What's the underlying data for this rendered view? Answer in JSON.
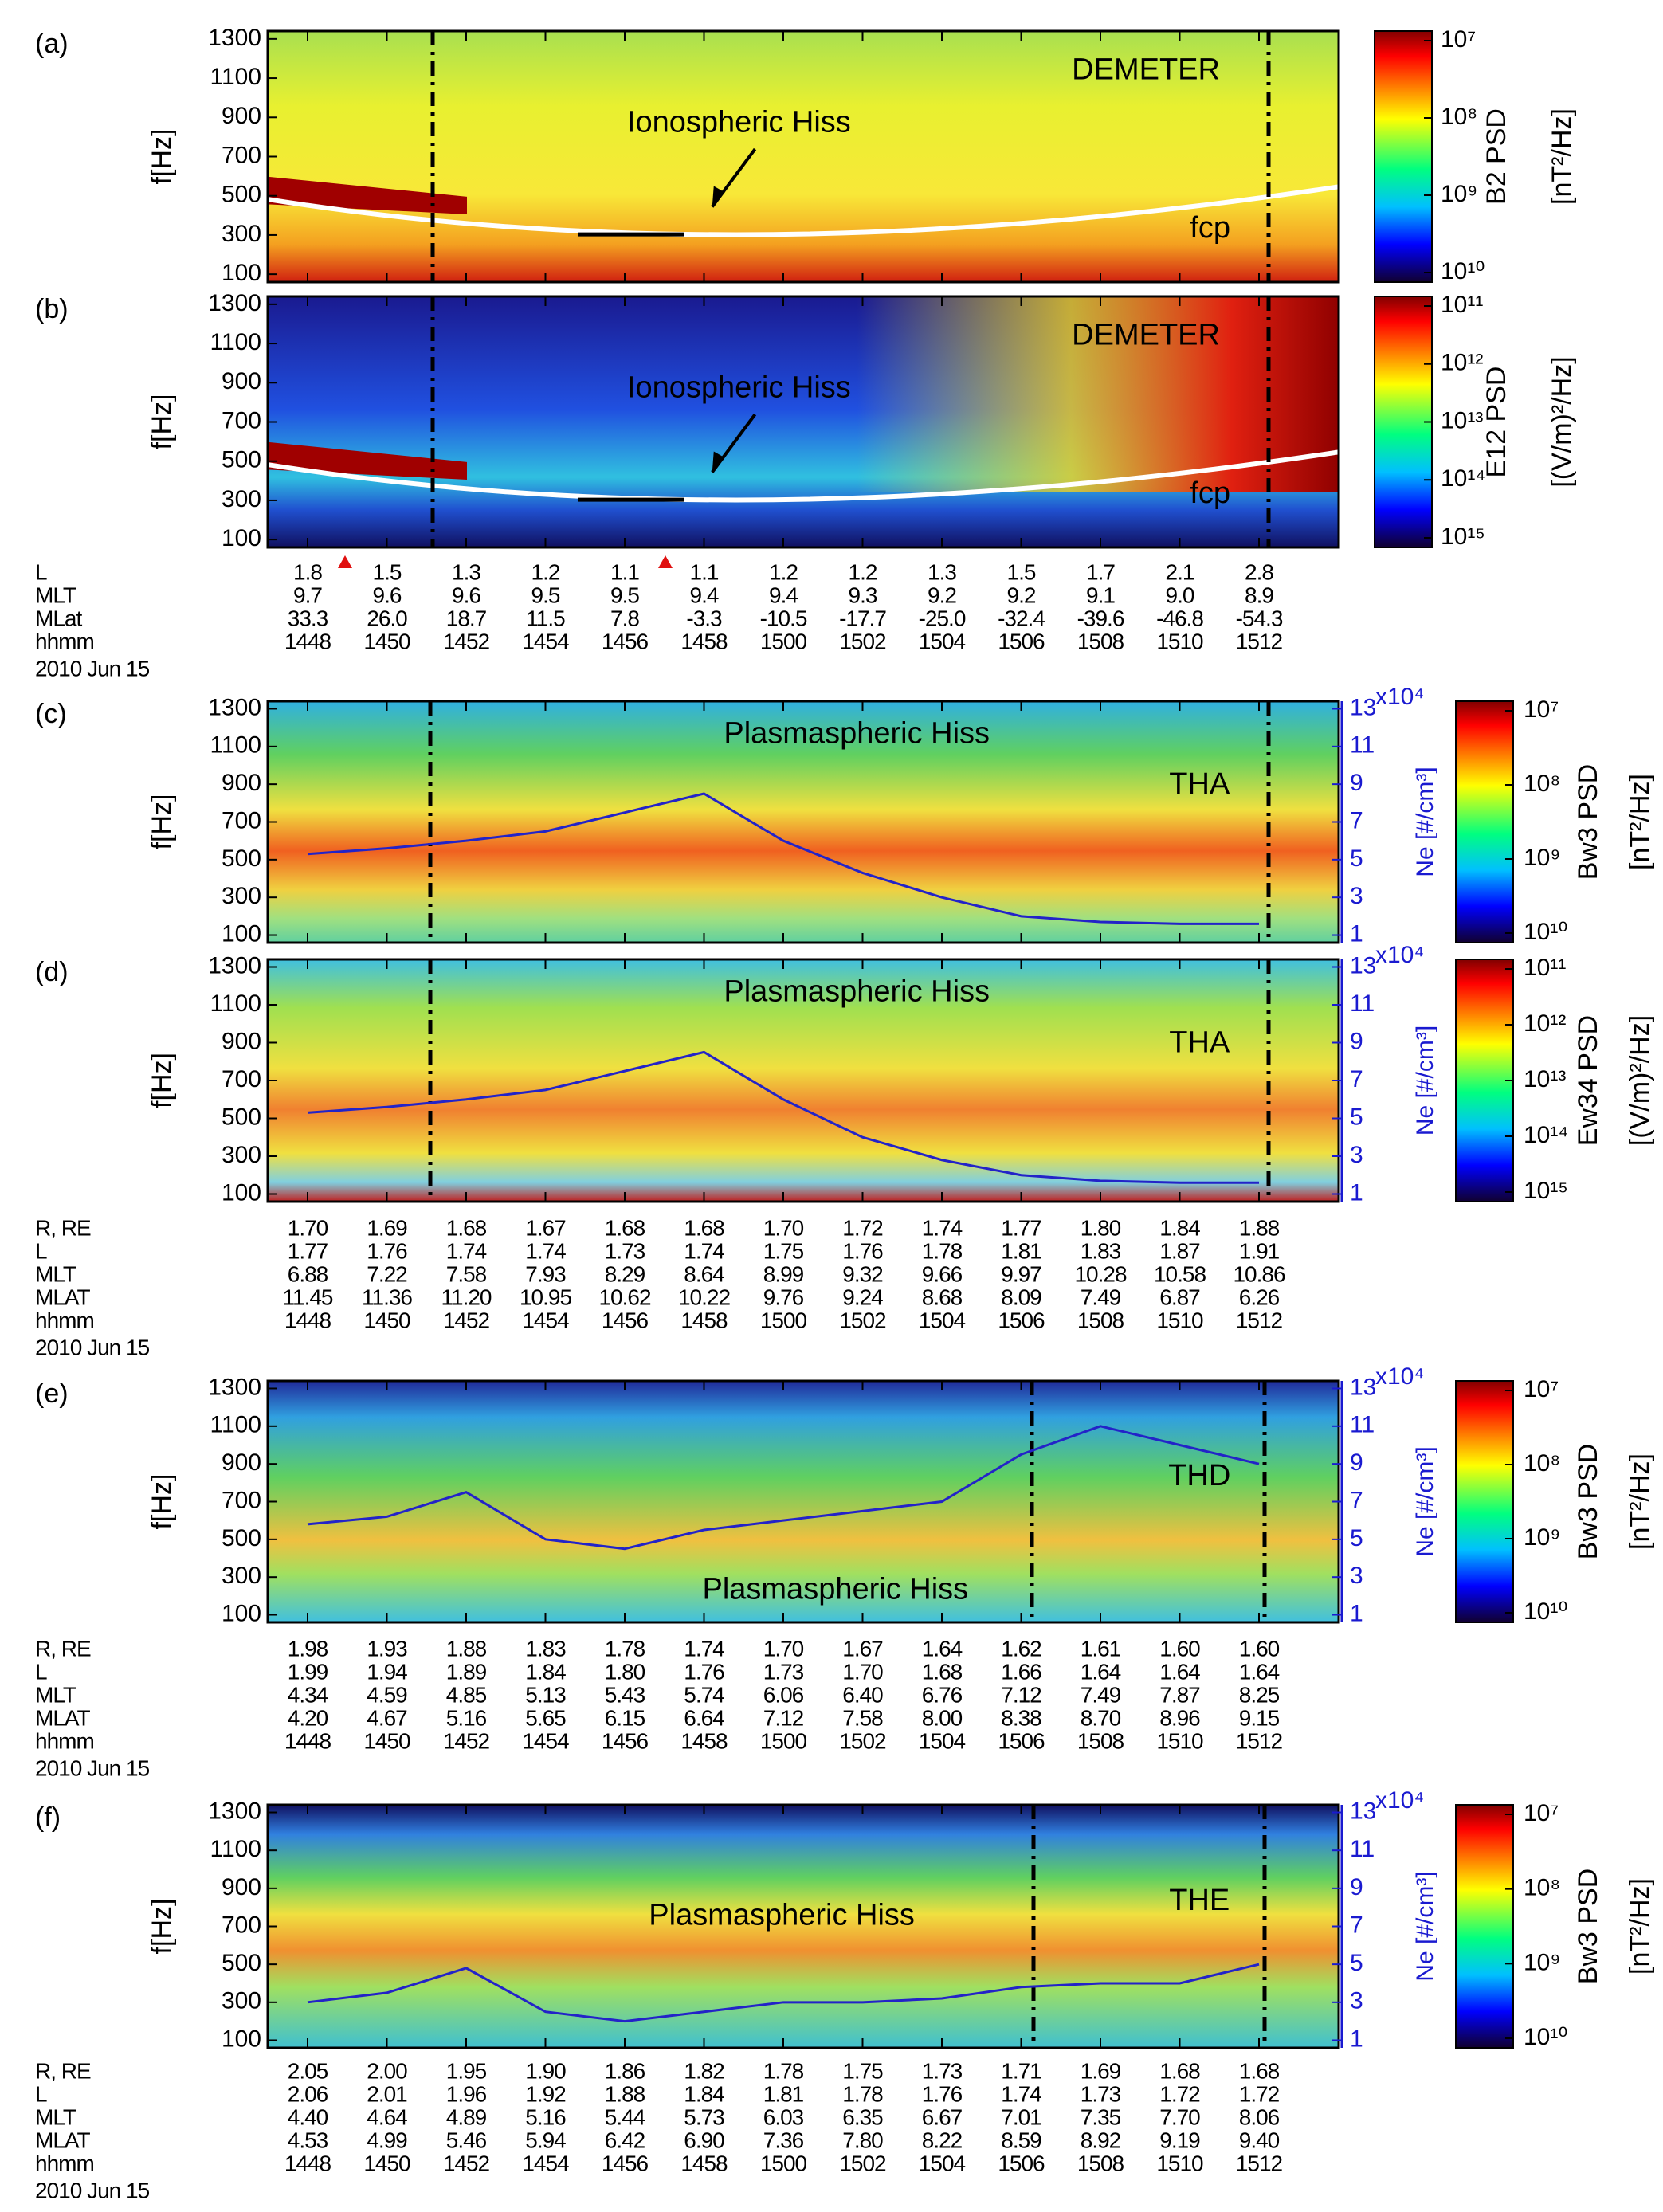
{
  "chart_data": [
    {
      "type": "spectrogram",
      "label": "(a)",
      "ylabel": "f[Hz]",
      "ylim": [
        60,
        1340
      ],
      "yticks": [
        100,
        300,
        500,
        700,
        900,
        1100,
        1300
      ],
      "annotations": [
        "DEMETER",
        "Ionospheric Hiss",
        "fcp"
      ],
      "colorbar": {
        "ticks": [
          "10⁷",
          "10⁸",
          "10⁹",
          "10¹⁰"
        ],
        "label": "B2 PSD",
        "unit": "[nT²/Hz]"
      }
    },
    {
      "type": "spectrogram",
      "label": "(b)",
      "ylabel": "f[Hz]",
      "ylim": [
        60,
        1340
      ],
      "yticks": [
        100,
        300,
        500,
        700,
        900,
        1100,
        1300
      ],
      "annotations": [
        "DEMETER",
        "Ionospheric Hiss",
        "fcp"
      ],
      "colorbar": {
        "ticks": [
          "10¹¹",
          "10¹²",
          "10¹³",
          "10¹⁴",
          "10¹⁵"
        ],
        "label": "E12 PSD",
        "unit": "[(V/m)²/Hz]"
      },
      "orbit": {
        "rows": [
          {
            "label": "L",
            "values": [
              "1.8",
              "1.5",
              "1.3",
              "1.2",
              "1.1",
              "1.1",
              "1.2",
              "1.2",
              "1.3",
              "1.5",
              "1.7",
              "2.1",
              "2.8"
            ]
          },
          {
            "label": "MLT",
            "values": [
              "9.7",
              "9.6",
              "9.6",
              "9.5",
              "9.5",
              "9.4",
              "9.4",
              "9.3",
              "9.2",
              "9.2",
              "9.1",
              "9.0",
              "8.9"
            ]
          },
          {
            "label": "MLat",
            "values": [
              "33.3",
              "26.0",
              "18.7",
              "11.5",
              "7.8",
              "-3.3",
              "-10.5",
              "-17.7",
              "-25.0",
              "-32.4",
              "-39.6",
              "-46.8",
              "-54.3"
            ]
          },
          {
            "label": "hhmm",
            "values": [
              "1448",
              "1450",
              "1452",
              "1454",
              "1456",
              "1458",
              "1500",
              "1502",
              "1504",
              "1506",
              "1508",
              "1510",
              "1512"
            ]
          }
        ],
        "date": "2010 Jun 15"
      }
    },
    {
      "type": "spectrogram",
      "label": "(c)",
      "ylabel": "f[Hz]",
      "ylim": [
        60,
        1340
      ],
      "yticks": [
        100,
        300,
        500,
        700,
        900,
        1100,
        1300
      ],
      "y2lim": [
        0.6,
        13.4
      ],
      "y2ticks": [
        1,
        3,
        5,
        7,
        9,
        11,
        13
      ],
      "y2_multiplier": "x10⁴",
      "y2label": "Ne [#/cm³]",
      "series": [
        {
          "color": "#2323c8",
          "axis": "y2",
          "values": [
            5.3,
            5.6,
            6.0,
            6.5,
            7.5,
            8.5,
            6.0,
            4.3,
            3.0,
            2.0,
            1.7,
            1.6,
            1.6
          ]
        }
      ],
      "annotations": [
        "Plasmaspheric Hiss",
        "THA"
      ],
      "colorbar": {
        "ticks": [
          "10⁷",
          "10⁸",
          "10⁹",
          "10¹⁰"
        ],
        "label": "Bw3 PSD",
        "unit": "[nT²/Hz]"
      }
    },
    {
      "type": "spectrogram",
      "label": "(d)",
      "ylabel": "f[Hz]",
      "ylim": [
        60,
        1340
      ],
      "yticks": [
        100,
        300,
        500,
        700,
        900,
        1100,
        1300
      ],
      "y2lim": [
        0.6,
        13.4
      ],
      "y2ticks": [
        1,
        3,
        5,
        7,
        9,
        11,
        13
      ],
      "y2_multiplier": "x10⁴",
      "y2label": "Ne [#/cm³]",
      "series": [
        {
          "color": "#2323c8",
          "axis": "y2",
          "values": [
            5.3,
            5.6,
            6.0,
            6.5,
            7.5,
            8.5,
            6.0,
            4.0,
            2.8,
            2.0,
            1.7,
            1.6,
            1.6
          ]
        }
      ],
      "annotations": [
        "Plasmaspheric Hiss",
        "THA"
      ],
      "colorbar": {
        "ticks": [
          "10¹¹",
          "10¹²",
          "10¹³",
          "10¹⁴",
          "10¹⁵"
        ],
        "label": "Ew34 PSD",
        "unit": "[(V/m)²/Hz]"
      },
      "orbit": {
        "rows": [
          {
            "label": "R, RE",
            "values": [
              "1.70",
              "1.69",
              "1.68",
              "1.67",
              "1.68",
              "1.68",
              "1.70",
              "1.72",
              "1.74",
              "1.77",
              "1.80",
              "1.84",
              "1.88"
            ]
          },
          {
            "label": "L",
            "values": [
              "1.77",
              "1.76",
              "1.74",
              "1.74",
              "1.73",
              "1.74",
              "1.75",
              "1.76",
              "1.78",
              "1.81",
              "1.83",
              "1.87",
              "1.91"
            ]
          },
          {
            "label": "MLT",
            "values": [
              "6.88",
              "7.22",
              "7.58",
              "7.93",
              "8.29",
              "8.64",
              "8.99",
              "9.32",
              "9.66",
              "9.97",
              "10.28",
              "10.58",
              "10.86"
            ]
          },
          {
            "label": "MLAT",
            "values": [
              "11.45",
              "11.36",
              "11.20",
              "10.95",
              "10.62",
              "10.22",
              "9.76",
              "9.24",
              "8.68",
              "8.09",
              "7.49",
              "6.87",
              "6.26"
            ]
          },
          {
            "label": "hhmm",
            "values": [
              "1448",
              "1450",
              "1452",
              "1454",
              "1456",
              "1458",
              "1500",
              "1502",
              "1504",
              "1506",
              "1508",
              "1510",
              "1512"
            ]
          }
        ],
        "date": "2010 Jun 15"
      }
    },
    {
      "type": "spectrogram",
      "label": "(e)",
      "ylabel": "f[Hz]",
      "ylim": [
        60,
        1340
      ],
      "yticks": [
        100,
        300,
        500,
        700,
        900,
        1100,
        1300
      ],
      "y2lim": [
        0.6,
        13.4
      ],
      "y2ticks": [
        1,
        3,
        5,
        7,
        9,
        11,
        13
      ],
      "y2_multiplier": "x10⁴",
      "y2label": "Ne [#/cm³]",
      "series": [
        {
          "color": "#2323c8",
          "axis": "y2",
          "values": [
            5.8,
            6.2,
            7.5,
            5.0,
            4.5,
            5.5,
            6.0,
            6.5,
            7.0,
            9.5,
            11.0,
            10.0,
            9.0
          ]
        }
      ],
      "annotations": [
        "THD",
        "Plasmaspheric Hiss"
      ],
      "colorbar": {
        "ticks": [
          "10⁷",
          "10⁸",
          "10⁹",
          "10¹⁰"
        ],
        "label": "Bw3 PSD",
        "unit": "[nT²/Hz]"
      },
      "orbit": {
        "rows": [
          {
            "label": "R, RE",
            "values": [
              "1.98",
              "1.93",
              "1.88",
              "1.83",
              "1.78",
              "1.74",
              "1.70",
              "1.67",
              "1.64",
              "1.62",
              "1.61",
              "1.60",
              "1.60"
            ]
          },
          {
            "label": "L",
            "values": [
              "1.99",
              "1.94",
              "1.89",
              "1.84",
              "1.80",
              "1.76",
              "1.73",
              "1.70",
              "1.68",
              "1.66",
              "1.64",
              "1.64",
              "1.64"
            ]
          },
          {
            "label": "MLT",
            "values": [
              "4.34",
              "4.59",
              "4.85",
              "5.13",
              "5.43",
              "5.74",
              "6.06",
              "6.40",
              "6.76",
              "7.12",
              "7.49",
              "7.87",
              "8.25"
            ]
          },
          {
            "label": "MLAT",
            "values": [
              "4.20",
              "4.67",
              "5.16",
              "5.65",
              "6.15",
              "6.64",
              "7.12",
              "7.58",
              "8.00",
              "8.38",
              "8.70",
              "8.96",
              "9.15"
            ]
          },
          {
            "label": "hhmm",
            "values": [
              "1448",
              "1450",
              "1452",
              "1454",
              "1456",
              "1458",
              "1500",
              "1502",
              "1504",
              "1506",
              "1508",
              "1510",
              "1512"
            ]
          }
        ],
        "date": "2010 Jun 15"
      }
    },
    {
      "type": "spectrogram",
      "label": "(f)",
      "ylabel": "f[Hz]",
      "ylim": [
        60,
        1340
      ],
      "yticks": [
        100,
        300,
        500,
        700,
        900,
        1100,
        1300
      ],
      "y2lim": [
        0.6,
        13.4
      ],
      "y2ticks": [
        1,
        3,
        5,
        7,
        9,
        11,
        13
      ],
      "y2_multiplier": "x10⁴",
      "y2label": "Ne [#/cm³]",
      "series": [
        {
          "color": "#2323c8",
          "axis": "y2",
          "values": [
            3.0,
            3.5,
            4.8,
            2.5,
            2.0,
            2.5,
            3.0,
            3.0,
            3.2,
            3.8,
            4.0,
            4.0,
            5.0
          ]
        }
      ],
      "annotations": [
        "Plasmaspheric Hiss",
        "THE"
      ],
      "colorbar": {
        "ticks": [
          "10⁷",
          "10⁸",
          "10⁹",
          "10¹⁰"
        ],
        "label": "Bw3 PSD",
        "unit": "[nT²/Hz]"
      },
      "orbit": {
        "rows": [
          {
            "label": "R, RE",
            "values": [
              "2.05",
              "2.00",
              "1.95",
              "1.90",
              "1.86",
              "1.82",
              "1.78",
              "1.75",
              "1.73",
              "1.71",
              "1.69",
              "1.68",
              "1.68"
            ]
          },
          {
            "label": "L",
            "values": [
              "2.06",
              "2.01",
              "1.96",
              "1.92",
              "1.88",
              "1.84",
              "1.81",
              "1.78",
              "1.76",
              "1.74",
              "1.73",
              "1.72",
              "1.72"
            ]
          },
          {
            "label": "MLT",
            "values": [
              "4.40",
              "4.64",
              "4.89",
              "5.16",
              "5.44",
              "5.73",
              "6.03",
              "6.35",
              "6.67",
              "7.01",
              "7.35",
              "7.70",
              "8.06"
            ]
          },
          {
            "label": "MLAT",
            "values": [
              "4.53",
              "4.99",
              "5.46",
              "5.94",
              "6.42",
              "6.90",
              "7.36",
              "7.80",
              "8.22",
              "8.59",
              "8.92",
              "9.19",
              "9.40"
            ]
          },
          {
            "label": "hhmm",
            "values": [
              "1448",
              "1450",
              "1452",
              "1454",
              "1456",
              "1458",
              "1500",
              "1502",
              "1504",
              "1506",
              "1508",
              "1510",
              "1512"
            ]
          }
        ],
        "date": "2010 Jun 15"
      }
    }
  ]
}
